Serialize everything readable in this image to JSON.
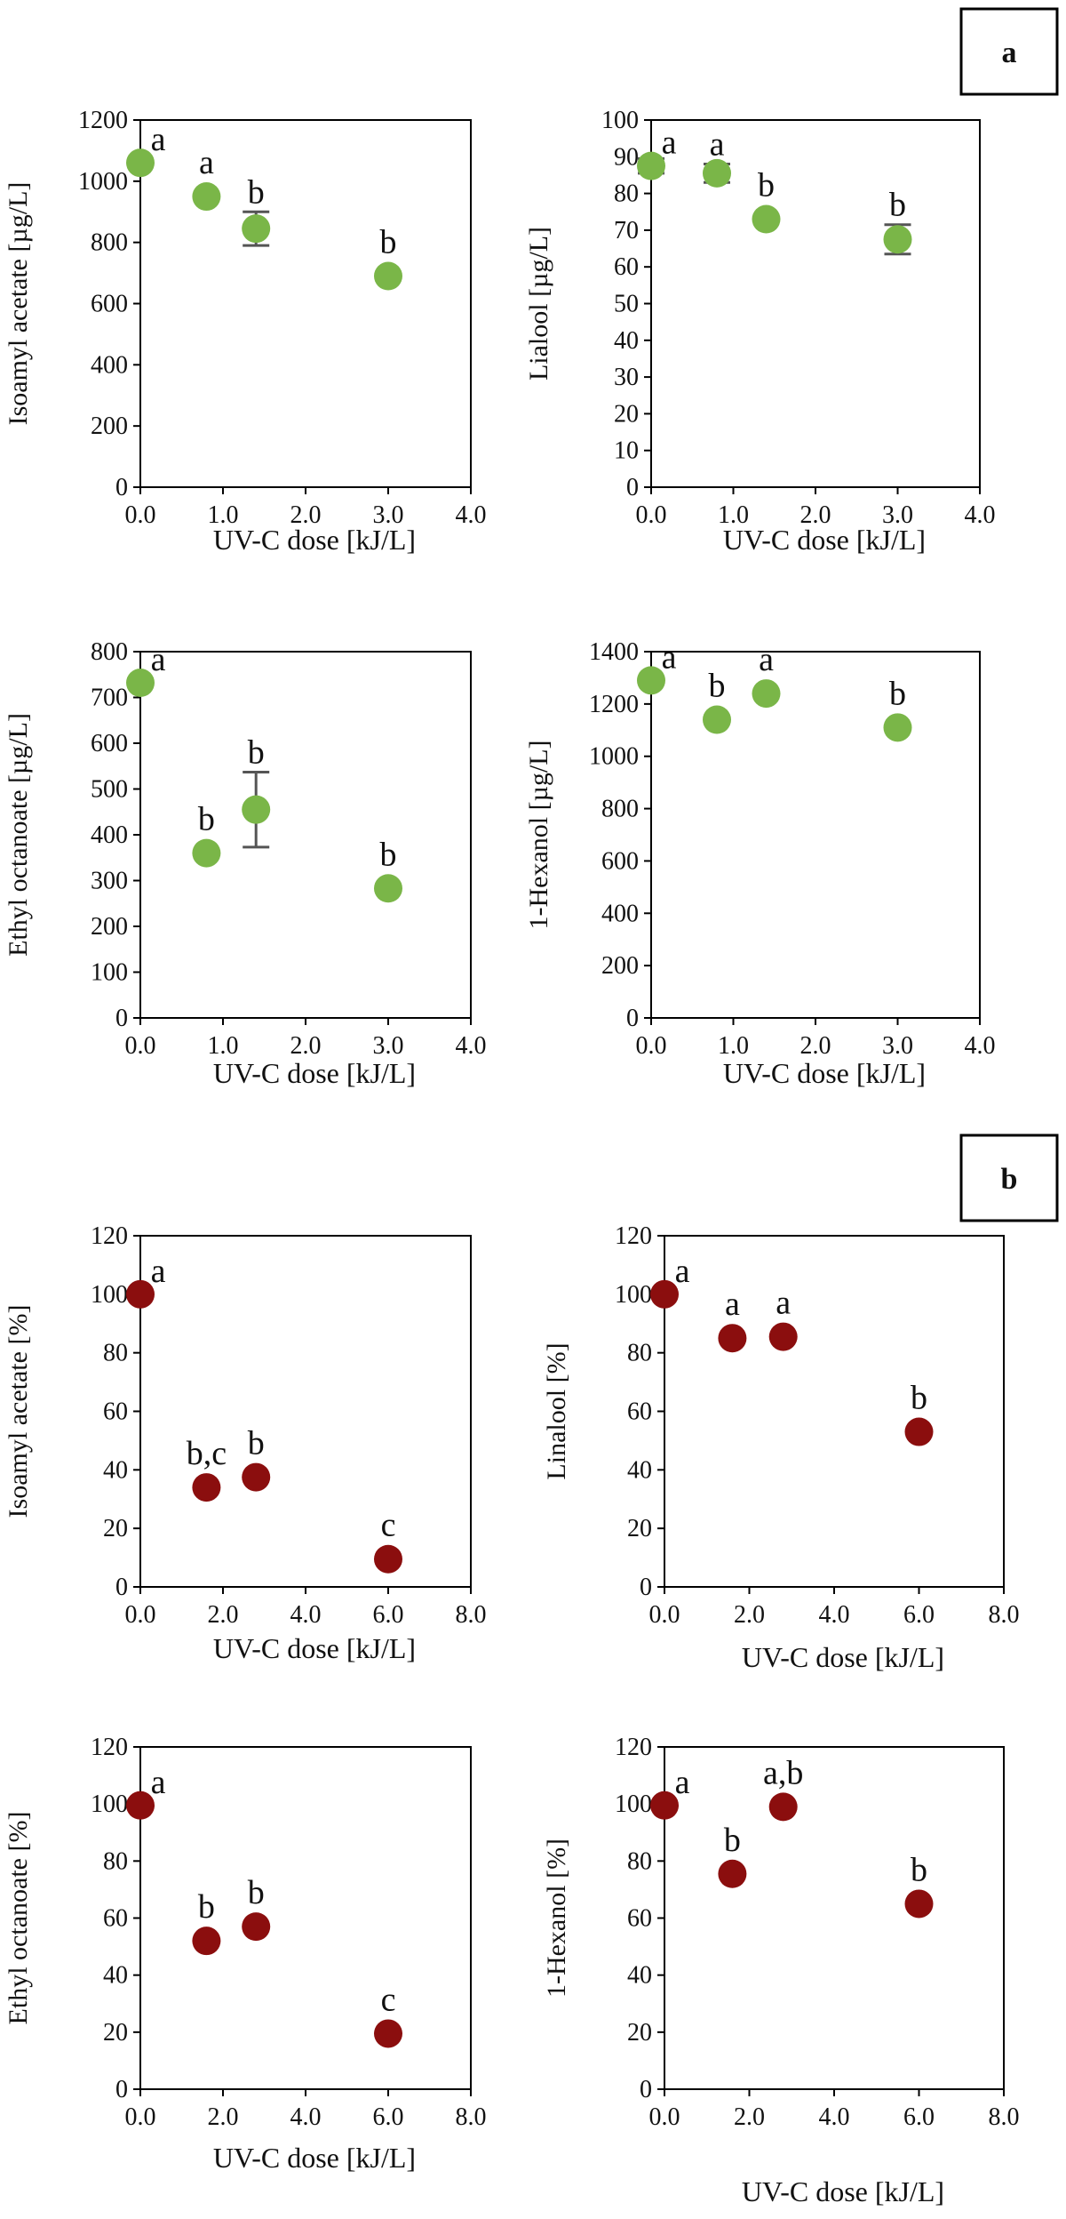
{
  "panels": [
    {
      "id": "a",
      "label": "a"
    },
    {
      "id": "b",
      "label": "b"
    }
  ],
  "colors": {
    "green": "#7ab648",
    "red": "#8b0e0e",
    "axis": "#000000",
    "errorbar": "#555555"
  },
  "chart_data": [
    {
      "type": "scatter",
      "panel": "a",
      "title": "",
      "xlabel": "UV-C dose [kJ/L]",
      "ylabel": "Isoamyl acetate [µg/L]",
      "xlim": [
        0,
        4
      ],
      "ylim": [
        0,
        1200
      ],
      "xticks": [
        0,
        1,
        2,
        3,
        4
      ],
      "xtick_labels": [
        "0.0",
        "1.0",
        "2.0",
        "3.0",
        "4.0"
      ],
      "yticks": [
        0,
        200,
        400,
        600,
        800,
        1000,
        1200
      ],
      "ytick_labels": [
        "0",
        "200",
        "400",
        "600",
        "800",
        "1000",
        "1200"
      ],
      "color": "#7ab648",
      "x": [
        0.0,
        0.8,
        1.4,
        3.0
      ],
      "y": [
        1060,
        950,
        845,
        690
      ],
      "err": [
        0,
        0,
        55,
        0
      ],
      "labels": [
        "a",
        "a",
        "b",
        "b"
      ]
    },
    {
      "type": "scatter",
      "panel": "a",
      "title": "",
      "xlabel": "UV-C dose [kJ/L]",
      "ylabel": "Lialool [µg/L]",
      "xlim": [
        0,
        4
      ],
      "ylim": [
        0,
        100
      ],
      "xticks": [
        0,
        1,
        2,
        3,
        4
      ],
      "xtick_labels": [
        "0.0",
        "1.0",
        "2.0",
        "3.0",
        "4.0"
      ],
      "yticks": [
        0,
        10,
        20,
        30,
        40,
        50,
        60,
        70,
        80,
        90,
        100
      ],
      "ytick_labels": [
        "0",
        "10",
        "20",
        "30",
        "40",
        "50",
        "60",
        "70",
        "80",
        "90",
        "100"
      ],
      "color": "#7ab648",
      "x": [
        0.0,
        0.8,
        1.4,
        3.0
      ],
      "y": [
        87.5,
        85.5,
        73,
        67.5
      ],
      "err": [
        2,
        2.5,
        0,
        4
      ],
      "labels": [
        "a",
        "a",
        "b",
        "b"
      ]
    },
    {
      "type": "scatter",
      "panel": "a",
      "title": "",
      "xlabel": "UV-C dose [kJ/L]",
      "ylabel": "Ethyl octanoate [µg/L]",
      "xlim": [
        0,
        4
      ],
      "ylim": [
        0,
        800
      ],
      "xticks": [
        0,
        1,
        2,
        3,
        4
      ],
      "xtick_labels": [
        "0.0",
        "1.0",
        "2.0",
        "3.0",
        "4.0"
      ],
      "yticks": [
        0,
        100,
        200,
        300,
        400,
        500,
        600,
        700,
        800
      ],
      "ytick_labels": [
        "0",
        "100",
        "200",
        "300",
        "400",
        "500",
        "600",
        "700",
        "800"
      ],
      "color": "#7ab648",
      "x": [
        0.0,
        0.8,
        1.4,
        3.0
      ],
      "y": [
        732,
        360,
        455,
        283
      ],
      "err": [
        0,
        0,
        82,
        0
      ],
      "labels": [
        "a",
        "b",
        "b",
        "b"
      ]
    },
    {
      "type": "scatter",
      "panel": "a",
      "title": "",
      "xlabel": "UV-C dose [kJ/L]",
      "ylabel": "1-Hexanol [µg/L]",
      "xlim": [
        0,
        4
      ],
      "ylim": [
        0,
        1400
      ],
      "xticks": [
        0,
        1,
        2,
        3,
        4
      ],
      "xtick_labels": [
        "0.0",
        "1.0",
        "2.0",
        "3.0",
        "4.0"
      ],
      "yticks": [
        0,
        200,
        400,
        600,
        800,
        1000,
        1200,
        1400
      ],
      "ytick_labels": [
        "0",
        "200",
        "400",
        "600",
        "800",
        "1000",
        "1200",
        "1400"
      ],
      "color": "#7ab648",
      "x": [
        0.0,
        0.8,
        1.4,
        3.0
      ],
      "y": [
        1290,
        1140,
        1240,
        1110
      ],
      "err": [
        0,
        0,
        0,
        0
      ],
      "labels": [
        "a",
        "b",
        "a",
        "b"
      ]
    },
    {
      "type": "scatter",
      "panel": "b",
      "title": "",
      "xlabel": "UV-C dose [kJ/L]",
      "ylabel": "Isoamyl acetate [%]",
      "xlim": [
        0,
        8
      ],
      "ylim": [
        0,
        120
      ],
      "xticks": [
        0,
        2,
        4,
        6,
        8
      ],
      "xtick_labels": [
        "0.0",
        "2.0",
        "4.0",
        "6.0",
        "8.0"
      ],
      "yticks": [
        0,
        20,
        40,
        60,
        80,
        100,
        120
      ],
      "ytick_labels": [
        "0",
        "20",
        "40",
        "60",
        "80",
        "100",
        "120"
      ],
      "color": "#8b0e0e",
      "x": [
        0.0,
        1.6,
        2.8,
        6.0
      ],
      "y": [
        100,
        34,
        37.5,
        9.5
      ],
      "err": [
        0,
        0,
        0,
        0
      ],
      "labels": [
        "a",
        "b,c",
        "b",
        "c"
      ]
    },
    {
      "type": "scatter",
      "panel": "b",
      "title": "",
      "xlabel": "UV-C dose [kJ/L]",
      "ylabel": "Linalool [%]",
      "xlim": [
        0,
        8
      ],
      "ylim": [
        0,
        120
      ],
      "xticks": [
        0,
        2,
        4,
        6,
        8
      ],
      "xtick_labels": [
        "0.0",
        "2.0",
        "4.0",
        "6.0",
        "8.0"
      ],
      "yticks": [
        0,
        20,
        40,
        60,
        80,
        100,
        120
      ],
      "ytick_labels": [
        "0",
        "20",
        "40",
        "60",
        "80",
        "100",
        "120"
      ],
      "color": "#8b0e0e",
      "x": [
        0.0,
        1.6,
        2.8,
        6.0
      ],
      "y": [
        100,
        85,
        85.5,
        53
      ],
      "err": [
        0,
        0,
        0,
        0
      ],
      "labels": [
        "a",
        "a",
        "a",
        "b"
      ]
    },
    {
      "type": "scatter",
      "panel": "b",
      "title": "",
      "xlabel": "UV-C dose [kJ/L]",
      "ylabel": "Ethyl octanoate [%]",
      "xlim": [
        0,
        8
      ],
      "ylim": [
        0,
        120
      ],
      "xticks": [
        0,
        2,
        4,
        6,
        8
      ],
      "xtick_labels": [
        "0.0",
        "2.0",
        "4.0",
        "6.0",
        "8.0"
      ],
      "yticks": [
        0,
        20,
        40,
        60,
        80,
        100,
        120
      ],
      "ytick_labels": [
        "0",
        "20",
        "40",
        "60",
        "80",
        "100",
        "120"
      ],
      "color": "#8b0e0e",
      "x": [
        0.0,
        1.6,
        2.8,
        6.0
      ],
      "y": [
        99.5,
        52,
        57,
        19.5
      ],
      "err": [
        0,
        0,
        0,
        0
      ],
      "labels": [
        "a",
        "b",
        "b",
        "c"
      ]
    },
    {
      "type": "scatter",
      "panel": "b",
      "title": "",
      "xlabel": "UV-C dose [kJ/L]",
      "ylabel": "1-Hexanol [%]",
      "xlim": [
        0,
        8
      ],
      "ylim": [
        0,
        120
      ],
      "xticks": [
        0,
        2,
        4,
        6,
        8
      ],
      "xtick_labels": [
        "0.0",
        "2.0",
        "4.0",
        "6.0",
        "8.0"
      ],
      "yticks": [
        0,
        20,
        40,
        60,
        80,
        100,
        120
      ],
      "ytick_labels": [
        "0",
        "20",
        "40",
        "60",
        "80",
        "100",
        "120"
      ],
      "color": "#8b0e0e",
      "x": [
        0.0,
        1.6,
        2.8,
        6.0
      ],
      "y": [
        99.5,
        75.5,
        99,
        65
      ],
      "err": [
        0,
        0,
        0,
        0
      ],
      "labels": [
        "a",
        "b",
        "a,b",
        "b"
      ]
    }
  ]
}
